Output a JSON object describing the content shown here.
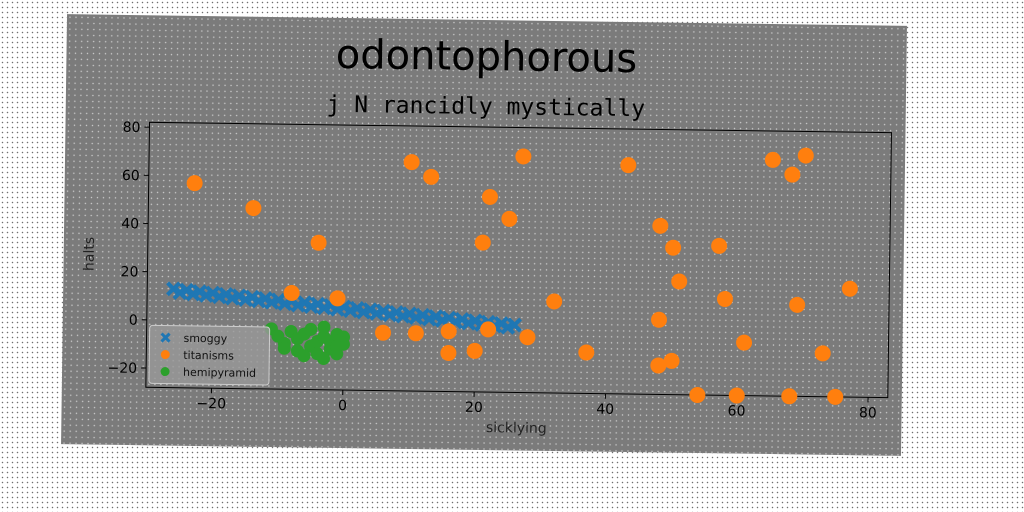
{
  "chart_data": {
    "type": "scatter",
    "title": "odontophorous",
    "subtitle": "j N rancidly mystically",
    "xlabel": "sicklying",
    "ylabel": "halts",
    "xlim": [
      -30,
      83
    ],
    "ylim": [
      -28,
      82
    ],
    "xticks": [
      -20,
      0,
      20,
      40,
      60,
      80
    ],
    "yticks": [
      -20,
      0,
      20,
      40,
      60,
      80
    ],
    "grid": false,
    "legend_position": "lower-left",
    "series": [
      {
        "name": "smoggy",
        "color": "#1f77b4",
        "marker": "x",
        "points": [
          [
            -26,
            13
          ],
          [
            -25,
            11.5
          ],
          [
            -24,
            12.5
          ],
          [
            -23,
            11
          ],
          [
            -22,
            12
          ],
          [
            -21,
            10.5
          ],
          [
            -20,
            11.5
          ],
          [
            -19,
            10
          ],
          [
            -18,
            11
          ],
          [
            -17,
            9.5
          ],
          [
            -16,
            10.5
          ],
          [
            -15,
            9
          ],
          [
            -14,
            10
          ],
          [
            -13,
            8.5
          ],
          [
            -12,
            9.5
          ],
          [
            -11,
            8
          ],
          [
            -10,
            9
          ],
          [
            -9,
            7.5
          ],
          [
            -8,
            8.5
          ],
          [
            -7,
            7
          ],
          [
            -6,
            8
          ],
          [
            -5,
            6.5
          ],
          [
            -4,
            7.5
          ],
          [
            -3,
            6
          ],
          [
            -2,
            7
          ],
          [
            -1,
            5.5
          ],
          [
            0,
            6.5
          ],
          [
            1,
            5
          ],
          [
            2,
            6
          ],
          [
            3,
            4.5
          ],
          [
            4,
            5.5
          ],
          [
            5,
            4
          ],
          [
            6,
            5
          ],
          [
            7,
            3.5
          ],
          [
            8,
            4.5
          ],
          [
            9,
            3
          ],
          [
            10,
            4
          ],
          [
            11,
            2.5
          ],
          [
            12,
            3.5
          ],
          [
            13,
            2
          ],
          [
            14,
            3
          ],
          [
            15,
            1.5
          ],
          [
            16,
            2.5
          ],
          [
            17,
            1
          ],
          [
            18,
            2
          ],
          [
            19,
            0.5
          ],
          [
            20,
            1.5
          ],
          [
            21,
            0
          ],
          [
            22,
            1
          ],
          [
            23,
            -0.5
          ],
          [
            24,
            0.5
          ],
          [
            25,
            -1
          ],
          [
            26,
            0
          ]
        ]
      },
      {
        "name": "titanisms",
        "color": "#ff7f0e",
        "marker": "o",
        "points": [
          [
            -23,
            57
          ],
          [
            -14,
            47
          ],
          [
            -4,
            33
          ],
          [
            -8,
            12
          ],
          [
            -1,
            10
          ],
          [
            6,
            -4
          ],
          [
            11,
            -4
          ],
          [
            16,
            -3
          ],
          [
            16,
            -12
          ],
          [
            20,
            -11
          ],
          [
            22,
            -2
          ],
          [
            28,
            -5
          ],
          [
            32,
            10
          ],
          [
            37,
            -11
          ],
          [
            10,
            67
          ],
          [
            13,
            61
          ],
          [
            22,
            53
          ],
          [
            21,
            34
          ],
          [
            25,
            44
          ],
          [
            27,
            70
          ],
          [
            43,
            67
          ],
          [
            48,
            42
          ],
          [
            50,
            33
          ],
          [
            51,
            19
          ],
          [
            48,
            3
          ],
          [
            48,
            -16
          ],
          [
            50,
            -14
          ],
          [
            54,
            -28
          ],
          [
            57,
            34
          ],
          [
            58,
            12
          ],
          [
            60,
            -28
          ],
          [
            61,
            -6
          ],
          [
            65,
            70
          ],
          [
            68,
            64
          ],
          [
            70,
            72
          ],
          [
            68,
            -28
          ],
          [
            69,
            10
          ],
          [
            73,
            -10
          ],
          [
            75,
            -28
          ],
          [
            77,
            17
          ]
        ]
      },
      {
        "name": "hemipyramid",
        "color": "#2ca02c",
        "marker": "o",
        "points": [
          [
            -11,
            -3
          ],
          [
            -10,
            -6
          ],
          [
            -9,
            -9
          ],
          [
            -8,
            -4
          ],
          [
            -7,
            -12
          ],
          [
            -7,
            -7
          ],
          [
            -6,
            -5
          ],
          [
            -5,
            -10
          ],
          [
            -5,
            -3
          ],
          [
            -4,
            -8
          ],
          [
            -4,
            -13
          ],
          [
            -3,
            -6
          ],
          [
            -3,
            -2
          ],
          [
            -2,
            -11
          ],
          [
            -2,
            -8
          ],
          [
            -1,
            -5
          ],
          [
            -1,
            -13
          ],
          [
            0,
            -9
          ],
          [
            0,
            -6
          ],
          [
            -6,
            -14
          ],
          [
            -9,
            -11
          ],
          [
            -3,
            -15
          ],
          [
            -1,
            -10
          ]
        ]
      }
    ]
  }
}
